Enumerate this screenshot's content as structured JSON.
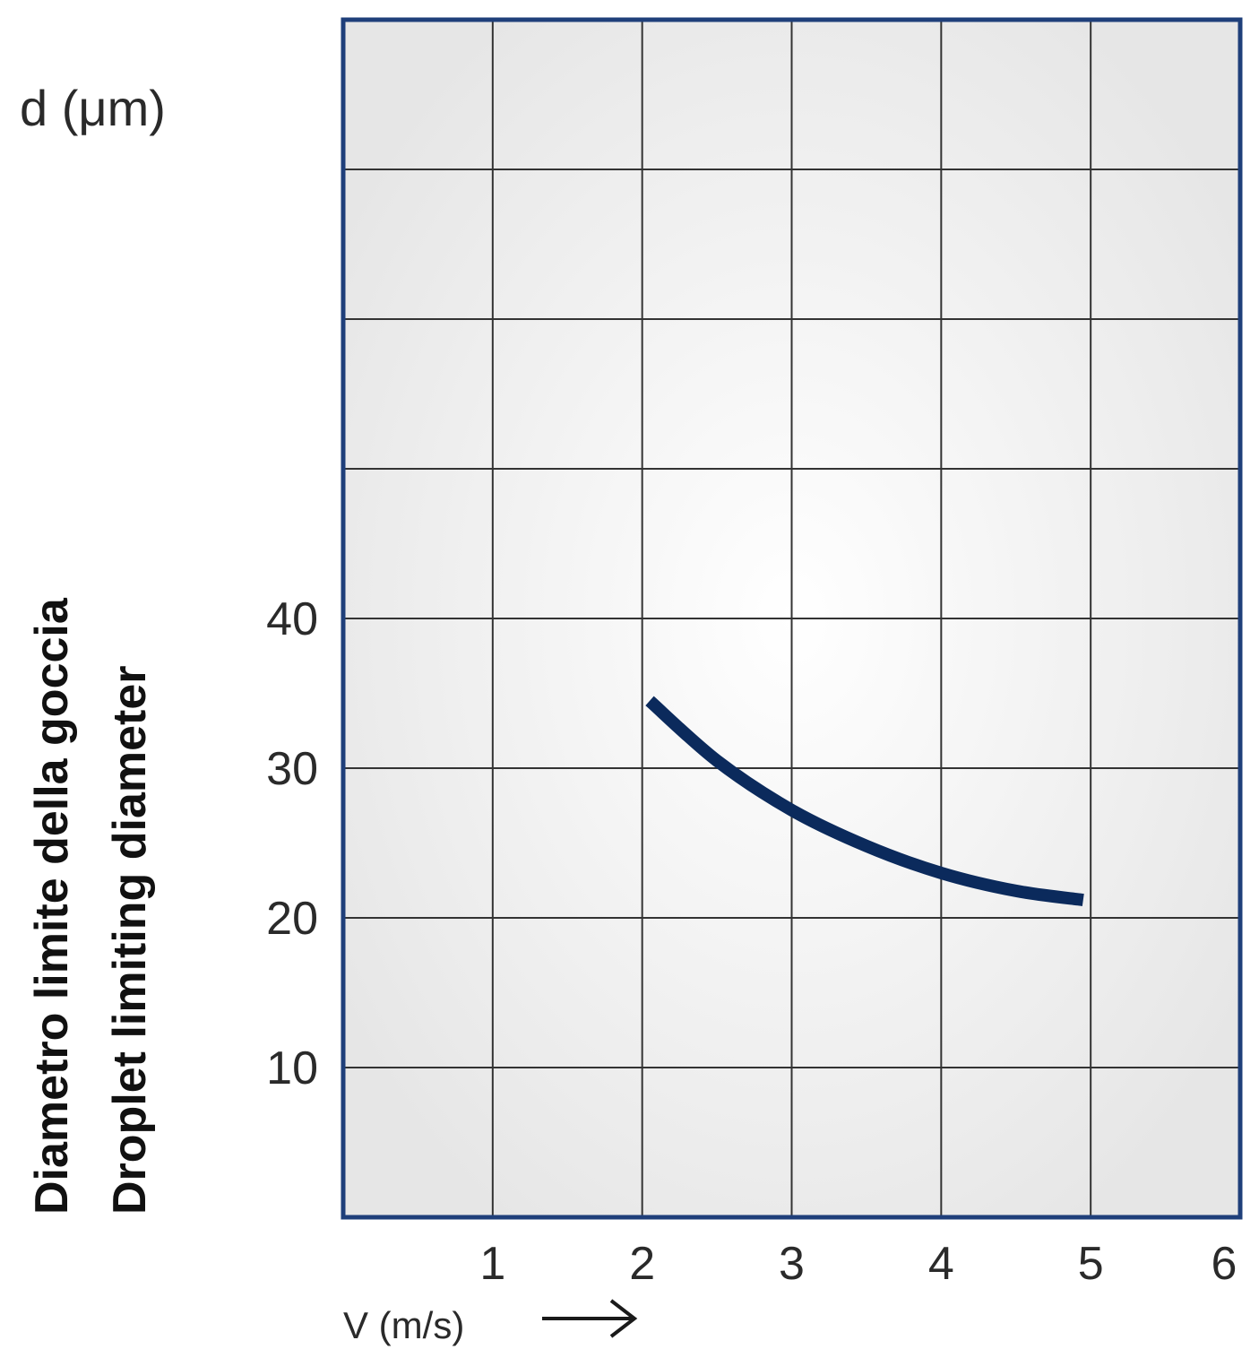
{
  "chart_data": {
    "type": "line",
    "title": "",
    "xlabel": "V (m/s)",
    "ylabel_lines": [
      "Diametro limite della goccia",
      "Droplet limiting diameter"
    ],
    "y_unit_label": "d (μm)",
    "xlim": [
      0,
      6
    ],
    "ylim": [
      0,
      80
    ],
    "x_ticks": [
      1,
      2,
      3,
      4,
      5,
      6
    ],
    "y_ticks": [
      10,
      20,
      30,
      40
    ],
    "grid": true,
    "series": [
      {
        "x": [
          2.05,
          2.5,
          3.0,
          3.5,
          4.0,
          4.5,
          4.95
        ],
        "y": [
          34.5,
          30.5,
          27.2,
          24.8,
          23.0,
          21.8,
          21.2
        ]
      }
    ]
  },
  "colors": {
    "frame": "#1f3f7a",
    "grid": "#333333",
    "curve": "#0b2a5c",
    "background_center": "#ffffff",
    "background_edge": "#e6e6e6"
  }
}
